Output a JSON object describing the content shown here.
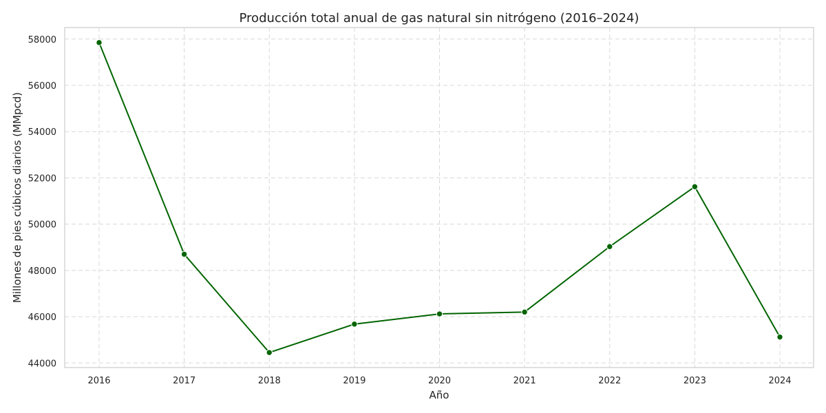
{
  "chart_data": {
    "type": "line",
    "title": "Producción total anual de gas natural sin nitrógeno (2016–2024)",
    "xlabel": "Año",
    "ylabel": "Millones de pies cúbicos diarios (MMpcd)",
    "categories": [
      "2016",
      "2017",
      "2018",
      "2019",
      "2020",
      "2021",
      "2022",
      "2023",
      "2024"
    ],
    "series": [
      {
        "values": [
          57850,
          48700,
          44450,
          45680,
          46120,
          46200,
          49030,
          51620,
          45120
        ],
        "color": "#006400"
      }
    ],
    "ylim": [
      43800,
      58500
    ],
    "yticks": [
      44000,
      46000,
      48000,
      50000,
      52000,
      54000,
      56000,
      58000
    ],
    "grid": true,
    "legend": "none"
  }
}
